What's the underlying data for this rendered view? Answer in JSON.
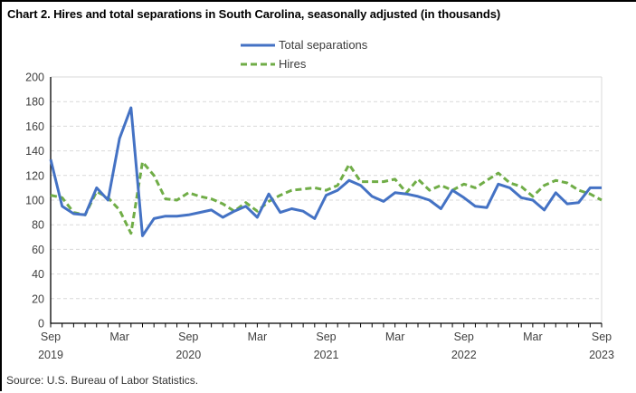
{
  "title": "Chart 2. Hires and total separations in South Carolina, seasonally adjusted (in thousands)",
  "source_note": "Source: U.S. Bureau of Labor Statistics.",
  "legend": [
    {
      "label": "Total separations",
      "color": "#4472C4",
      "style": "solid"
    },
    {
      "label": "Hires",
      "color": "#70AD47",
      "style": "dashed"
    }
  ],
  "chart_data": {
    "type": "line",
    "title": "Chart 2. Hires and total separations in South Carolina, seasonally adjusted (in thousands)",
    "unit": "thousands",
    "grid": "horizontal-dashed",
    "legend_position": "top-center",
    "ylim": [
      0,
      200
    ],
    "yticks": [
      0,
      20,
      40,
      60,
      80,
      100,
      120,
      140,
      160,
      180,
      200
    ],
    "xticks": [
      {
        "index": 0,
        "label": "Sep",
        "year": "2019"
      },
      {
        "index": 6,
        "label": "Mar",
        "year": ""
      },
      {
        "index": 12,
        "label": "Sep",
        "year": "2020"
      },
      {
        "index": 18,
        "label": "Mar",
        "year": ""
      },
      {
        "index": 24,
        "label": "Sep",
        "year": "2021"
      },
      {
        "index": 30,
        "label": "Mar",
        "year": ""
      },
      {
        "index": 36,
        "label": "Sep",
        "year": "2022"
      },
      {
        "index": 42,
        "label": "Mar",
        "year": ""
      },
      {
        "index": 48,
        "label": "Sep",
        "year": "2023"
      }
    ],
    "x_months": [
      "Sep 2019",
      "Oct 2019",
      "Nov 2019",
      "Dec 2019",
      "Jan 2020",
      "Feb 2020",
      "Mar 2020",
      "Apr 2020",
      "May 2020",
      "Jun 2020",
      "Jul 2020",
      "Aug 2020",
      "Sep 2020",
      "Oct 2020",
      "Nov 2020",
      "Dec 2020",
      "Jan 2021",
      "Feb 2021",
      "Mar 2021",
      "Apr 2021",
      "May 2021",
      "Jun 2021",
      "Jul 2021",
      "Aug 2021",
      "Sep 2021",
      "Oct 2021",
      "Nov 2021",
      "Dec 2021",
      "Jan 2022",
      "Feb 2022",
      "Mar 2022",
      "Apr 2022",
      "May 2022",
      "Jun 2022",
      "Jul 2022",
      "Aug 2022",
      "Sep 2022",
      "Oct 2022",
      "Nov 2022",
      "Dec 2022",
      "Jan 2023",
      "Feb 2023",
      "Mar 2023",
      "Apr 2023",
      "May 2023",
      "Jun 2023",
      "Jul 2023",
      "Aug 2023",
      "Sep 2023"
    ],
    "series": [
      {
        "name": "Total separations",
        "color": "#4472C4",
        "line_style": "solid",
        "values": [
          133,
          95,
          89,
          88,
          110,
          100,
          150,
          175,
          71,
          85,
          87,
          87,
          88,
          90,
          92,
          86,
          91,
          95,
          86,
          105,
          90,
          93,
          91,
          85,
          104,
          108,
          116,
          112,
          103,
          99,
          106,
          105,
          103,
          100,
          93,
          108,
          102,
          95,
          94,
          113,
          110,
          102,
          100,
          92,
          106,
          97,
          98,
          110,
          110
        ]
      },
      {
        "name": "Hires",
        "color": "#70AD47",
        "line_style": "dashed",
        "values": [
          104,
          102,
          90,
          88,
          107,
          102,
          92,
          73,
          131,
          120,
          101,
          100,
          106,
          103,
          101,
          97,
          91,
          98,
          91,
          99,
          104,
          108,
          109,
          110,
          108,
          112,
          129,
          115,
          115,
          115,
          117,
          106,
          117,
          108,
          112,
          108,
          113,
          110,
          116,
          122,
          114,
          111,
          103,
          112,
          116,
          114,
          108,
          105,
          100
        ]
      }
    ]
  }
}
